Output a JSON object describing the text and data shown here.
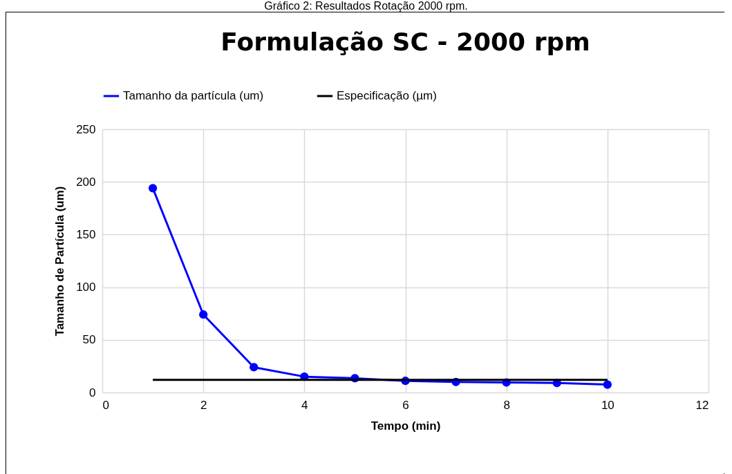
{
  "chart_data": {
    "type": "line",
    "title": "Formulação SC - 2000 rpm",
    "xlabel": "Tempo (min)",
    "ylabel": "Tamanho de Partícula (um)",
    "annotations": [
      "Gráfico 2: Resultados Rotação 2000 rpm."
    ],
    "x": [
      1,
      2,
      3,
      4,
      5,
      6,
      7,
      8,
      9,
      10
    ],
    "series": [
      {
        "name": "Tamanho da partícula (um)",
        "color": "#0000ff",
        "marker": "circle",
        "values": [
          194,
          74,
          24,
          15,
          13.5,
          11,
          10,
          9.5,
          9,
          7.5
        ]
      },
      {
        "name": "Especificação (µm)",
        "color": "#000000",
        "marker": "none",
        "values": [
          12,
          12,
          12,
          12,
          12,
          12,
          12,
          12,
          12,
          12
        ]
      }
    ],
    "xlim": [
      0,
      12
    ],
    "xticks": [
      0,
      2,
      4,
      6,
      8,
      10,
      12
    ],
    "ylim": [
      0,
      250
    ],
    "yticks": [
      0,
      50,
      100,
      150,
      200,
      250
    ],
    "grid": true,
    "legend": "top",
    "line_style": "solid"
  }
}
